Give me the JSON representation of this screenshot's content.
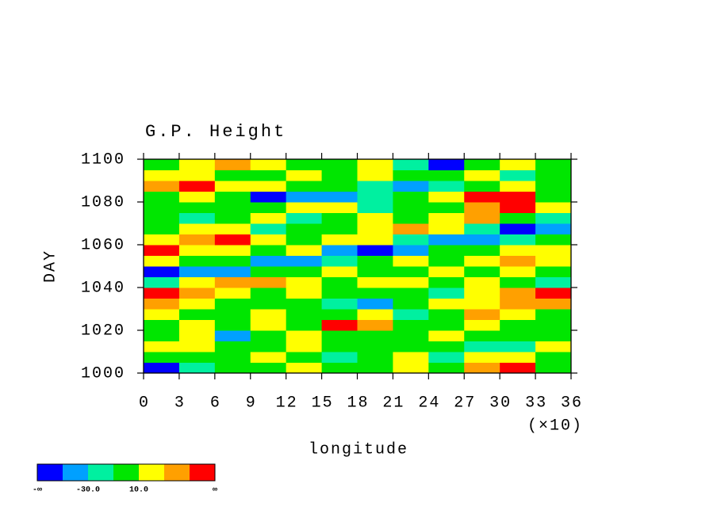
{
  "chart_data": {
    "type": "heatmap",
    "title": "G.P. Height",
    "x_label": "longitude",
    "x_multiplier": "(×10)",
    "y_label": "DAY",
    "xlim": [
      0,
      36
    ],
    "xticks": [
      0,
      3,
      6,
      9,
      12,
      15,
      18,
      21,
      24,
      27,
      30,
      33,
      36
    ],
    "ylim": [
      1000,
      1100
    ],
    "yticks": [
      1000,
      1020,
      1040,
      1060,
      1080,
      1100
    ],
    "x": [
      1.5,
      4.5,
      7.5,
      10.5,
      13.5,
      16.5,
      19.5,
      22.5,
      25.5,
      28.5,
      31.5,
      34.5
    ],
    "y": [
      1002.5,
      1007.5,
      1012.5,
      1017.5,
      1022.5,
      1027.5,
      1032.5,
      1037.5,
      1042.5,
      1047.5,
      1052.5,
      1057.5,
      1062.5,
      1067.5,
      1072.5,
      1077.5,
      1082.5,
      1087.5,
      1092.5,
      1097.5
    ],
    "z": [
      [
        -60,
        -20,
        0,
        5,
        15,
        0,
        -5,
        10,
        0,
        40,
        60,
        0
      ],
      [
        0,
        5,
        -10,
        15,
        0,
        -20,
        5,
        10,
        -30,
        20,
        10,
        0
      ],
      [
        10,
        20,
        0,
        -5,
        10,
        0,
        -10,
        5,
        0,
        -20,
        -30,
        10
      ],
      [
        -5,
        10,
        -40,
        0,
        15,
        5,
        -10,
        0,
        10,
        -10,
        0,
        5
      ],
      [
        0,
        15,
        5,
        10,
        -10,
        55,
        40,
        0,
        -10,
        10,
        0,
        -5
      ],
      [
        10,
        0,
        -10,
        20,
        5,
        0,
        10,
        -20,
        -5,
        30,
        15,
        0
      ],
      [
        30,
        10,
        0,
        -10,
        0,
        -20,
        -40,
        -10,
        20,
        10,
        30,
        45
      ],
      [
        55,
        35,
        15,
        -5,
        10,
        0,
        -10,
        0,
        -20,
        10,
        40,
        60
      ],
      [
        -20,
        20,
        30,
        40,
        10,
        0,
        10,
        20,
        0,
        10,
        0,
        -30
      ],
      [
        -55,
        -50,
        -40,
        0,
        5,
        10,
        -10,
        0,
        10,
        5,
        20,
        0
      ],
      [
        10,
        5,
        0,
        -50,
        -45,
        -20,
        0,
        10,
        5,
        20,
        30,
        10
      ],
      [
        60,
        20,
        10,
        0,
        10,
        -50,
        -55,
        -40,
        0,
        -10,
        15,
        20
      ],
      [
        10,
        30,
        55,
        10,
        0,
        10,
        20,
        -20,
        -50,
        -40,
        -20,
        0
      ],
      [
        0,
        10,
        20,
        -20,
        0,
        -10,
        10,
        40,
        10,
        -20,
        -55,
        -50
      ],
      [
        -10,
        -30,
        0,
        10,
        -20,
        0,
        10,
        0,
        20,
        30,
        0,
        -20
      ],
      [
        5,
        0,
        -10,
        0,
        10,
        10,
        -20,
        0,
        5,
        40,
        60,
        10
      ],
      [
        -10,
        10,
        0,
        -55,
        -50,
        -40,
        -20,
        -10,
        20,
        60,
        50,
        0
      ],
      [
        40,
        60,
        20,
        10,
        0,
        -10,
        -20,
        -40,
        -30,
        0,
        10,
        -10
      ],
      [
        10,
        20,
        0,
        -10,
        10,
        0,
        10,
        -10,
        0,
        20,
        -20,
        0
      ],
      [
        0,
        10,
        40,
        20,
        0,
        -10,
        10,
        -20,
        -60,
        0,
        10,
        -10
      ]
    ],
    "colorbar": {
      "levels": [
        -50,
        -30,
        -10,
        10,
        30,
        50
      ],
      "colors": [
        "#0000ff",
        "#00a0ff",
        "#00f0a0",
        "#00e600",
        "#ffff00",
        "#ffa000",
        "#ff0000"
      ],
      "low_label": "-∞",
      "high_label": "∞",
      "ticks": [
        {
          "value": -30,
          "label": "-30.0"
        },
        {
          "value": 10,
          "label": "10.0"
        }
      ]
    }
  }
}
